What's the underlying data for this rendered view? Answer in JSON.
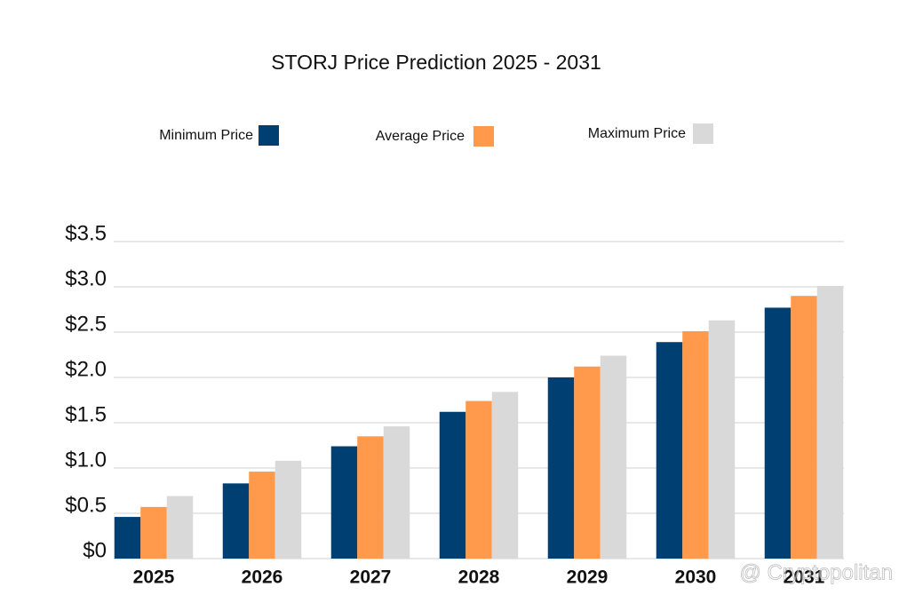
{
  "chart_data": {
    "type": "bar",
    "title": "STORJ Price Prediction 2025 - 2031",
    "categories": [
      "2025",
      "2026",
      "2027",
      "2028",
      "2029",
      "2030",
      "2031"
    ],
    "series": [
      {
        "name": "Minimum Price",
        "color": "#003f72",
        "values": [
          0.46,
          0.83,
          1.24,
          1.62,
          2.0,
          2.39,
          2.77
        ]
      },
      {
        "name": "Average Price",
        "color": "#ff9a4d",
        "values": [
          0.57,
          0.96,
          1.35,
          1.74,
          2.12,
          2.51,
          2.9
        ]
      },
      {
        "name": "Maximum Price",
        "color": "#d9d9d9",
        "values": [
          0.69,
          1.08,
          1.46,
          1.84,
          2.24,
          2.63,
          3.01
        ]
      }
    ],
    "ylim": [
      0,
      3.5
    ],
    "yticks": [
      {
        "value": 0,
        "label": "$0"
      },
      {
        "value": 0.5,
        "label": "$0.5"
      },
      {
        "value": 1,
        "label": "$1.0"
      },
      {
        "value": 1.5,
        "label": "$1.5"
      },
      {
        "value": 2,
        "label": "$2.0"
      },
      {
        "value": 2.5,
        "label": "$2.5"
      },
      {
        "value": 3,
        "label": "$3.0"
      },
      {
        "value": 3.5,
        "label": "$3.5"
      }
    ],
    "grid": true,
    "watermark": "@ Cryptopolitan"
  }
}
